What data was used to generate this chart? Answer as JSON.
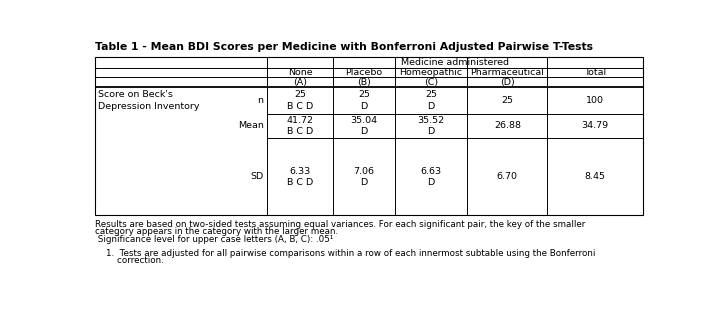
{
  "title": "Table 1 - Mean BDI Scores per Medicine with Bonferroni Adjusted Pairwise T-Tests",
  "medicine_header": "Medicine administered",
  "col_names": [
    "None",
    "Placebo",
    "Homeopathic",
    "Pharmaceutical",
    "Total"
  ],
  "col_letters": [
    "(A)",
    "(B)",
    "(C)",
    "(D)",
    ""
  ],
  "stats": [
    "n",
    "Mean",
    "SD"
  ],
  "row_label": "Score on Beck's\nDepression Inventory",
  "data": {
    "n": [
      "25\nB C D",
      "25\nD",
      "25\nD",
      "25",
      "100"
    ],
    "Mean": [
      "41.72\nB C D",
      "35.04\nD",
      "35.52\nD",
      "26.88",
      "34.79"
    ],
    "SD": [
      "6.33\nB C D",
      "7.06\nD",
      "6.63\nD",
      "6.70",
      "8.45"
    ]
  },
  "footnotes": [
    "Results are based on two-sided tests assuming equal variances. For each significant pair, the key of the smaller",
    "category appears in the category with the larger mean.",
    " Significance level for upper case letters (A, B, C): .05¹",
    "",
    "    1.  Tests are adjusted for all pairwise comparisons within a row of each innermost subtable using the Bonferroni",
    "        correction."
  ],
  "bg_color": "#ffffff",
  "border_color": "#000000",
  "text_color": "#000000",
  "font_size": 6.8,
  "title_font_size": 7.8
}
